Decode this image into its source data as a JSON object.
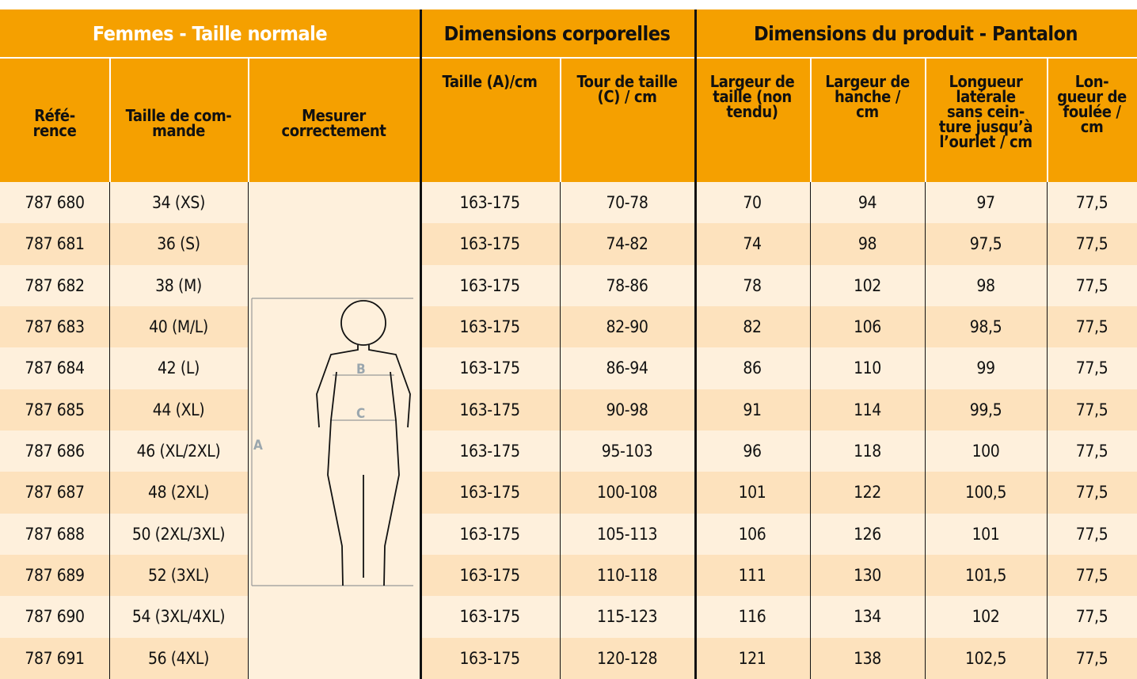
{
  "table": {
    "groups": [
      "Femmes - Taille normale",
      "Dimensions corporelles",
      "Dimensions du produit - Pantalon"
    ],
    "headers": [
      "Réfé-\nrence",
      "Taille de com-\nmande",
      "Mesurer\ncorrectement",
      "Taille (A)/cm",
      "Tour de taille\n(C) / cm",
      "Largeur de\ntaille (non\ntendu)",
      "Largeur de\nhanche /\ncm",
      "Longueur\nlatérale\nsans cein-\nture jusqu’à\nl’ourlet / cm",
      "Lon-\ngueur de\nfoulée /\ncm"
    ],
    "rows": [
      [
        "787 680",
        "34 (XS)",
        "163-175",
        "70-78",
        "70",
        "94",
        "97",
        "77,5"
      ],
      [
        "787 681",
        "36 (S)",
        "163-175",
        "74-82",
        "74",
        "98",
        "97,5",
        "77,5"
      ],
      [
        "787 682",
        "38 (M)",
        "163-175",
        "78-86",
        "78",
        "102",
        "98",
        "77,5"
      ],
      [
        "787 683",
        "40 (M/L)",
        "163-175",
        "82-90",
        "82",
        "106",
        "98,5",
        "77,5"
      ],
      [
        "787 684",
        "42 (L)",
        "163-175",
        "86-94",
        "86",
        "110",
        "99",
        "77,5"
      ],
      [
        "787 685",
        "44 (XL)",
        "163-175",
        "90-98",
        "91",
        "114",
        "99,5",
        "77,5"
      ],
      [
        "787 686",
        "46 (XL/2XL)",
        "163-175",
        "95-103",
        "96",
        "118",
        "100",
        "77,5"
      ],
      [
        "787 687",
        "48 (2XL)",
        "163-175",
        "100-108",
        "101",
        "122",
        "100,5",
        "77,5"
      ],
      [
        "787 688",
        "50 (2XL/3XL)",
        "163-175",
        "105-113",
        "106",
        "126",
        "101",
        "77,5"
      ],
      [
        "787 689",
        "52 (3XL)",
        "163-175",
        "110-118",
        "111",
        "130",
        "101,5",
        "77,5"
      ],
      [
        "787 690",
        "54 (3XL/4XL)",
        "163-175",
        "115-123",
        "116",
        "134",
        "102",
        "77,5"
      ],
      [
        "787 691",
        "56 (4XL)",
        "163-175",
        "120-128",
        "121",
        "138",
        "102,5",
        "77,5"
      ]
    ]
  },
  "figure": {
    "labels": [
      "A",
      "B",
      "C"
    ]
  }
}
